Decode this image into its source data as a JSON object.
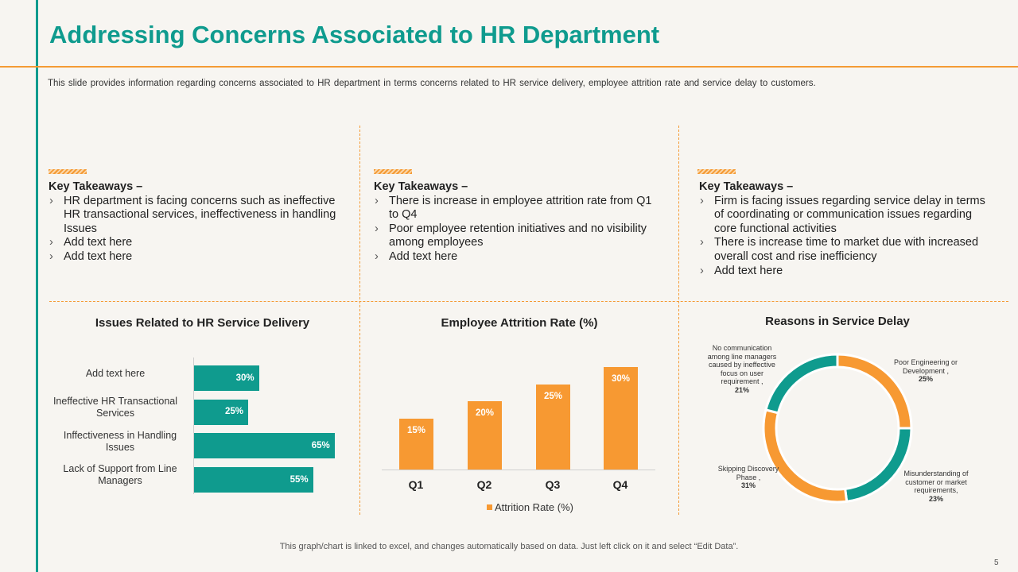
{
  "title": "Addressing Concerns Associated to HR Department",
  "subtitle": "This slide provides information regarding concerns associated to HR department in terms concerns related to HR service delivery, employee attrition rate and service delay to customers.",
  "takeaways": [
    {
      "heading": "Key Takeaways –",
      "bullets": [
        "HR department is facing concerns such as ineffective HR transactional services, ineffectiveness in handling Issues",
        "Add text here",
        "Add text here"
      ]
    },
    {
      "heading": "Key Takeaways –",
      "bullets": [
        "There is increase in employee attrition rate from Q1 to Q4",
        "Poor employee retention initiatives and no visibility among employees",
        "Add text here"
      ]
    },
    {
      "heading": "Key Takeaways –",
      "bullets": [
        "Firm is facing issues regarding service delay in terms of coordinating or communication issues regarding core functional activities",
        "There is increase time to market due with increased overall cost and rise inefficiency",
        "Add text here"
      ]
    }
  ],
  "chart_data": [
    {
      "type": "bar",
      "orientation": "horizontal",
      "title": "Issues Related to HR Service Delivery",
      "categories": [
        "Add text here",
        "Ineffective HR Transactional Services",
        "Inffectiveness in Handling Issues",
        "Lack of Support from Line Managers"
      ],
      "values": [
        30,
        25,
        65,
        55
      ],
      "value_labels": [
        "30%",
        "25%",
        "65%",
        "55%"
      ],
      "xlim": [
        0,
        70
      ],
      "color": "#0f9b8e"
    },
    {
      "type": "bar",
      "title": "Employee Attrition Rate (%)",
      "categories": [
        "Q1",
        "Q2",
        "Q3",
        "Q4"
      ],
      "series": [
        {
          "name": "Attrition Rate (%)",
          "values": [
            15,
            20,
            25,
            30
          ]
        }
      ],
      "value_labels": [
        "15%",
        "20%",
        "25%",
        "30%"
      ],
      "ylim": [
        0,
        32
      ],
      "legend": "bottom",
      "color": "#f79932"
    },
    {
      "type": "pie",
      "donut": true,
      "title": "Reasons in Service Delay",
      "slices": [
        {
          "label": "Poor Engineering or Development ,",
          "pct": "25%",
          "value": 25,
          "color": "#f79932"
        },
        {
          "label": "Misunderstanding of customer or market requirements,",
          "pct": "23%",
          "value": 23,
          "color": "#0f9b8e"
        },
        {
          "label": "Skipping Discovery Phase ,",
          "pct": "31%",
          "value": 31,
          "color": "#f79932"
        },
        {
          "label": "No communication among line managers caused by ineffective focus on user requirement ,",
          "pct": "21%",
          "value": 21,
          "color": "#0f9b8e"
        }
      ]
    }
  ],
  "footnote": "This graph/chart is linked to excel, and changes automatically based on data. Just left click on it and select “Edit Data”.",
  "page_number": "5",
  "colors": {
    "teal": "#0f9b8e",
    "orange": "#f79932"
  }
}
